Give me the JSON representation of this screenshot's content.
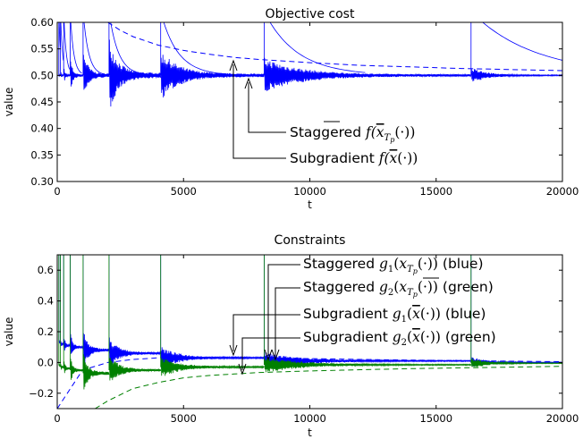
{
  "colors": {
    "blue": "#0000ff",
    "green": "#008000"
  },
  "chart_data": [
    {
      "type": "line",
      "title": "Objective cost",
      "xlabel": "t",
      "ylabel": "value",
      "xlim": [
        0,
        20000
      ],
      "ylim": [
        0.3,
        0.6
      ],
      "xticks": [
        0,
        5000,
        10000,
        15000,
        20000
      ],
      "xtick_labels": [
        "0",
        "5000",
        "10000",
        "15000",
        "20000"
      ],
      "yticks": [
        0.3,
        0.35,
        0.4,
        0.45,
        0.5,
        0.55,
        0.6
      ],
      "ytick_labels": [
        "0.30",
        "0.35",
        "0.40",
        "0.45",
        "0.50",
        "0.55",
        "0.60"
      ],
      "grid": false,
      "restart_times": [
        64,
        128,
        256,
        512,
        1024,
        2048,
        4096,
        8192,
        16384
      ],
      "series": [
        {
          "color": "blue",
          "style": "solid",
          "converges_to": 0.5,
          "oscillation": [
            0.003,
            0.004,
            0.006,
            0.01,
            0.015,
            0.02,
            0.013,
            0.009,
            0.004
          ]
        },
        {
          "color": "blue",
          "style": "dashed",
          "x": [
            2000,
            2500,
            3000,
            4000,
            5000,
            6000,
            7000,
            8000,
            10000,
            12000,
            14000,
            16000,
            18000,
            20000
          ],
          "y": [
            0.6,
            0.585,
            0.573,
            0.557,
            0.547,
            0.54,
            0.534,
            0.53,
            0.524,
            0.519,
            0.516,
            0.513,
            0.511,
            0.509
          ]
        }
      ],
      "annotations": [
        {
          "label": "Staggered",
          "math": "f(x̄_{T_p}(·))",
          "arrow_x": 7900,
          "arrow_y": 0.5
        },
        {
          "label": "Subgradient",
          "math": "f(x̄(·))",
          "arrow_x": 7000,
          "arrow_y": 0.527
        }
      ]
    },
    {
      "type": "line",
      "title": "Constraints",
      "xlabel": "t",
      "ylabel": "value",
      "xlim": [
        0,
        20000
      ],
      "ylim": [
        -0.3,
        0.7
      ],
      "xticks": [
        0,
        5000,
        10000,
        15000,
        20000
      ],
      "xtick_labels": [
        "0",
        "5000",
        "10000",
        "15000",
        "20000"
      ],
      "yticks": [
        -0.2,
        0.0,
        0.2,
        0.4,
        0.6
      ],
      "ytick_labels": [
        "−0.2",
        "0.0",
        "0.2",
        "0.4",
        "0.6"
      ],
      "grid": false,
      "restart_times": [
        64,
        128,
        256,
        512,
        1024,
        2048,
        4096,
        8192,
        16384
      ],
      "series": [
        {
          "color": "blue",
          "style": "solid",
          "plateaus": [
            0.13,
            0.12,
            0.11,
            0.1,
            0.08,
            0.06,
            0.03,
            0.01,
            0.0
          ],
          "oscillation": [
            0.02,
            0.02,
            0.03,
            0.03,
            0.04,
            0.03,
            0.02,
            0.015,
            0.01
          ]
        },
        {
          "color": "green",
          "style": "solid",
          "plateaus": [
            -0.02,
            -0.03,
            -0.04,
            -0.05,
            -0.07,
            -0.05,
            -0.03,
            -0.015,
            -0.005
          ],
          "oscillation": [
            0.02,
            0.02,
            0.03,
            0.03,
            0.04,
            0.03,
            0.02,
            0.015,
            0.01
          ]
        },
        {
          "color": "blue",
          "style": "dashed",
          "x": [
            0,
            1000,
            2000,
            3000,
            4000,
            5000,
            6000,
            7000,
            8000,
            10000,
            12000,
            14000,
            16000,
            18000,
            20000
          ],
          "y": [
            -0.3,
            -0.05,
            0.0,
            0.02,
            0.03,
            0.035,
            0.035,
            0.035,
            0.03,
            0.025,
            0.02,
            0.015,
            0.012,
            0.008,
            0.005
          ]
        },
        {
          "color": "green",
          "style": "dashed",
          "x": [
            1500,
            2000,
            3000,
            4000,
            5000,
            6000,
            7000,
            8000,
            10000,
            12000,
            14000,
            16000,
            18000,
            20000
          ],
          "y": [
            -0.3,
            -0.25,
            -0.17,
            -0.13,
            -0.1,
            -0.085,
            -0.075,
            -0.065,
            -0.055,
            -0.047,
            -0.04,
            -0.035,
            -0.03,
            -0.025
          ]
        }
      ],
      "annotations": [
        {
          "label": "Staggered",
          "math": "g_1(x̄_{T_p}(·))",
          "suffix": "(blue)",
          "arrow_x": 8100,
          "arrow_y": 0.0
        },
        {
          "label": "Staggered",
          "math": "g_2(x̄_{T_p}(·))",
          "suffix": "(green)",
          "arrow_x": 8500,
          "arrow_y": 0.0
        },
        {
          "label": "Subgradient",
          "math": "g_1(x̄(·))",
          "suffix": "(blue)",
          "arrow_x": 7000,
          "arrow_y": 0.03
        },
        {
          "label": "Subgradient",
          "math": "g_2(x̄(·))",
          "suffix": "(green)",
          "arrow_x": 7500,
          "arrow_y": -0.07
        }
      ]
    }
  ]
}
